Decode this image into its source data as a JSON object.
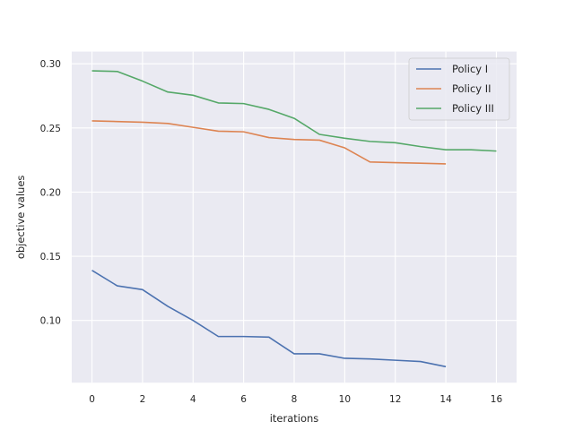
{
  "chart_data": {
    "type": "line",
    "title": "",
    "xlabel": "iterations",
    "ylabel": "objective values",
    "xlim": [
      -0.8,
      16.8
    ],
    "ylim": [
      0.0515,
      0.3095
    ],
    "xticks": [
      0,
      2,
      4,
      6,
      8,
      10,
      12,
      14,
      16
    ],
    "yticks": [
      0.1,
      0.15,
      0.2,
      0.25,
      0.3
    ],
    "xtick_labels": [
      "0",
      "2",
      "4",
      "6",
      "8",
      "10",
      "12",
      "14",
      "16"
    ],
    "ytick_labels": [
      "0.10",
      "0.15",
      "0.20",
      "0.25",
      "0.30"
    ],
    "grid": true,
    "legend_position": "top-right",
    "series": [
      {
        "name": "Policy I",
        "color": "#4c72b0",
        "x": [
          0,
          1,
          2,
          3,
          4,
          5,
          6,
          7,
          8,
          9,
          10,
          11,
          12,
          13,
          14
        ],
        "values": [
          0.139,
          0.127,
          0.124,
          0.111,
          0.1,
          0.0875,
          0.0875,
          0.087,
          0.074,
          0.074,
          0.0705,
          0.07,
          0.069,
          0.068,
          0.064
        ]
      },
      {
        "name": "Policy II",
        "color": "#dd8452",
        "x": [
          0,
          1,
          2,
          3,
          4,
          5,
          6,
          7,
          8,
          9,
          10,
          11,
          12,
          13,
          14
        ],
        "values": [
          0.2555,
          0.255,
          0.2545,
          0.2535,
          0.2505,
          0.2475,
          0.247,
          0.2425,
          0.241,
          0.2405,
          0.2345,
          0.2235,
          0.223,
          0.2225,
          0.222
        ]
      },
      {
        "name": "Policy III",
        "color": "#55a868",
        "x": [
          0,
          1,
          2,
          3,
          4,
          5,
          6,
          7,
          8,
          9,
          10,
          11,
          12,
          13,
          14,
          15,
          16
        ],
        "values": [
          0.2945,
          0.294,
          0.2865,
          0.278,
          0.2755,
          0.2695,
          0.269,
          0.2645,
          0.2575,
          0.245,
          0.242,
          0.2395,
          0.2385,
          0.2355,
          0.233,
          0.233,
          0.232
        ]
      }
    ]
  }
}
